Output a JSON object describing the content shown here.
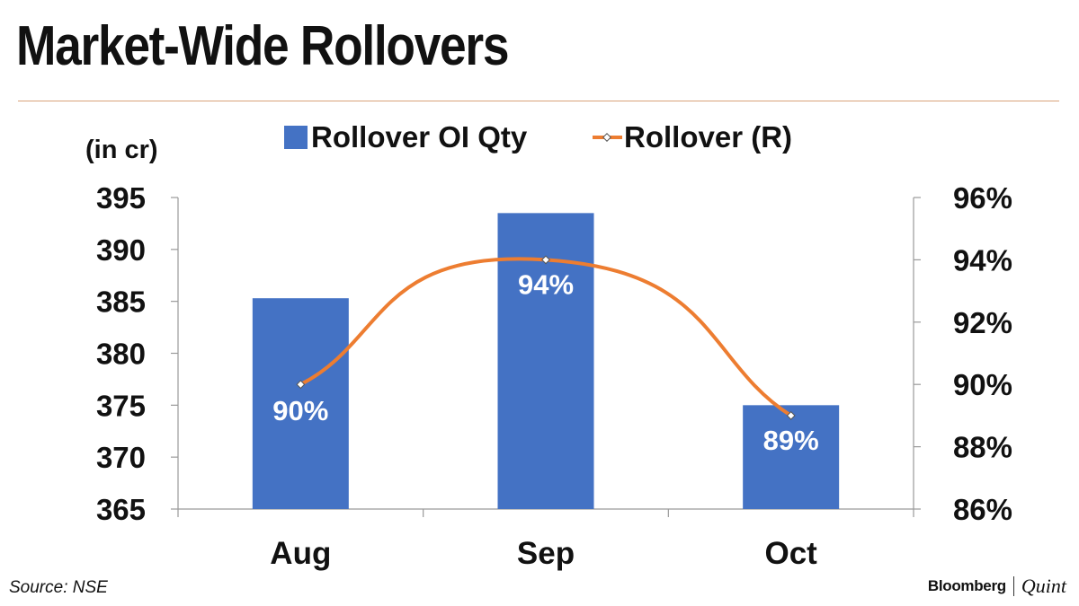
{
  "title": "Market-Wide Rollovers",
  "source": "Source: NSE",
  "brand": {
    "primary": "Bloomberg",
    "secondary": "Quint"
  },
  "colors": {
    "bar": "#4472c4",
    "line": "#ed7d31",
    "title_rule": "#d9a27a"
  },
  "chart_data": {
    "type": "bar",
    "categories": [
      "Aug",
      "Sep",
      "Oct"
    ],
    "series": [
      {
        "name": "Rollover OI Qty",
        "kind": "bar",
        "axis": "left",
        "values": [
          385.3,
          393.5,
          375.0
        ]
      },
      {
        "name": "Rollover (R)",
        "kind": "line",
        "axis": "right",
        "values": [
          90,
          94,
          89
        ],
        "data_labels": [
          "90%",
          "94%",
          "89%"
        ]
      }
    ],
    "left_axis": {
      "label": "(in cr)",
      "ylim": [
        365,
        395
      ],
      "ticks": [
        "365",
        "370",
        "375",
        "380",
        "385",
        "390",
        "395"
      ]
    },
    "right_axis": {
      "ylim": [
        86,
        96
      ],
      "ticks": [
        "86%",
        "88%",
        "90%",
        "92%",
        "94%",
        "96%"
      ]
    },
    "legend_position": "top",
    "grid": false
  }
}
